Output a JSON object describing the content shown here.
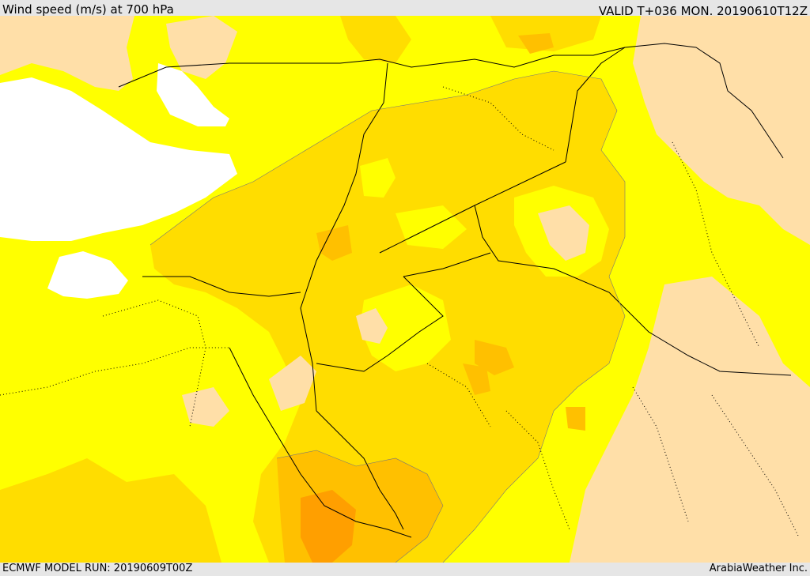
{
  "header": {
    "title": "Wind speed (m/s) at 700 hPa",
    "valid": "VALID T+036 MON. 20190610T12Z"
  },
  "footer": {
    "model_run": "ECMWF MODEL RUN: 20190609T00Z",
    "credit": "ArabiaWeather Inc."
  },
  "colors": {
    "background": "#e6e6e6",
    "sea": "#ffffff",
    "low": "#ffdfa8",
    "band1": "#ffff00",
    "band2": "#ffdd00",
    "band3": "#ffc000",
    "band4": "#ff9f00",
    "border": "#000000"
  }
}
